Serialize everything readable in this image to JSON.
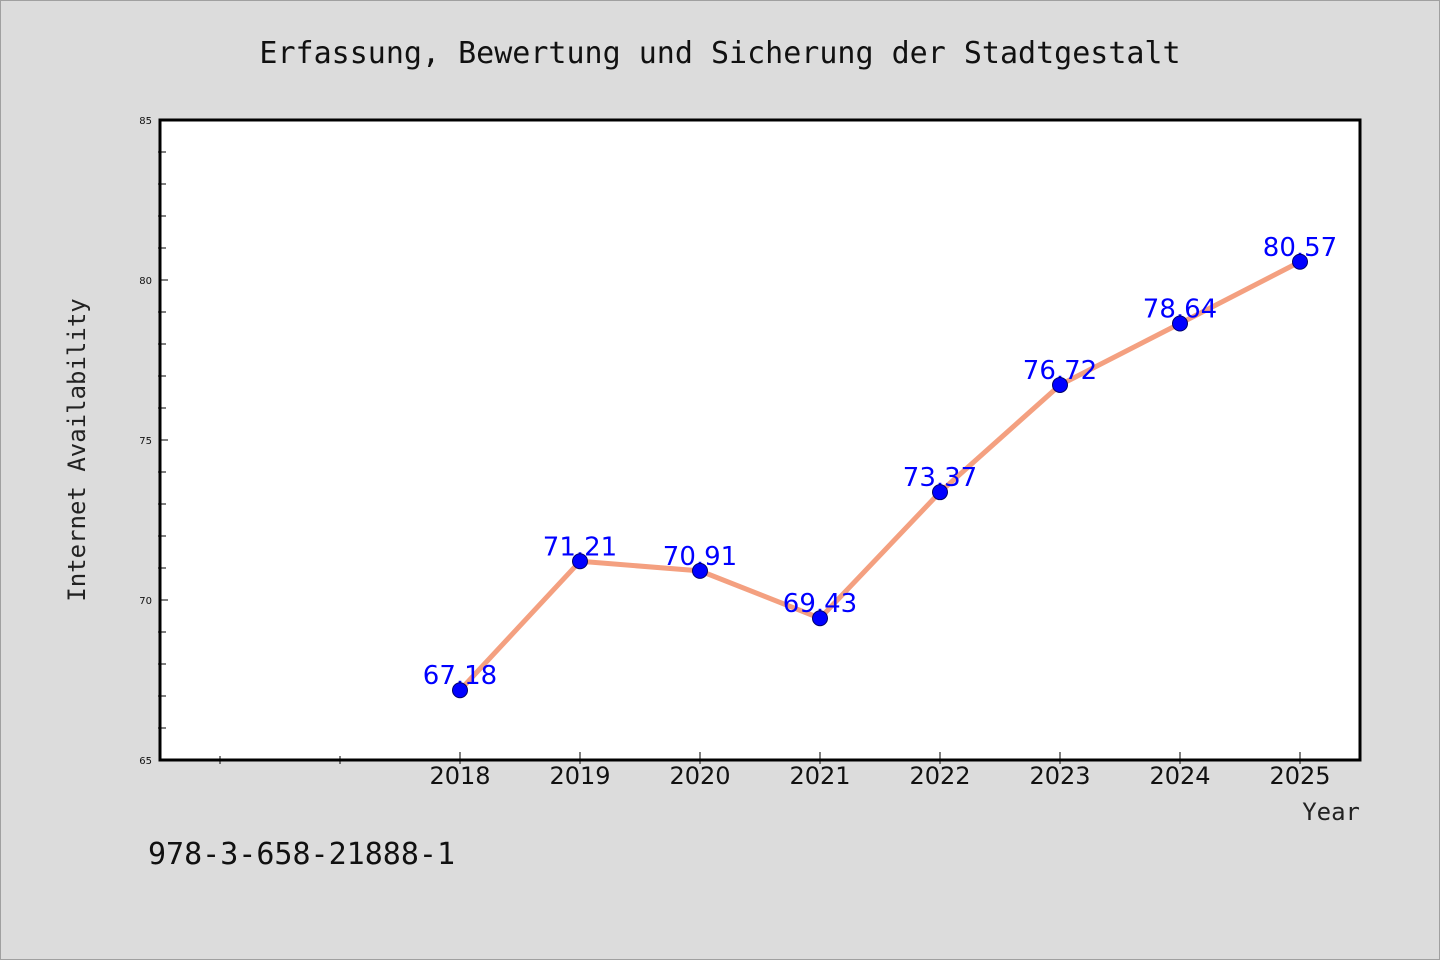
{
  "chart_data": {
    "type": "line",
    "title": "Erfassung, Bewertung und Sicherung der Stadtgestalt",
    "xlabel": "Year",
    "ylabel": "Internet Availability",
    "categories": [
      "2018",
      "2019",
      "2020",
      "2021",
      "2022",
      "2023",
      "2024",
      "2025"
    ],
    "series": [
      {
        "values": [
          67.18,
          71.21,
          70.91,
          69.43,
          73.37,
          76.72,
          78.64,
          80.57
        ],
        "data_labels": [
          "67.18",
          "71.21",
          "70.91",
          "69.43",
          "73.37",
          "76.72",
          "78.64",
          "80.57"
        ],
        "line_color": "#f4a080",
        "marker_color": "#0000ff"
      }
    ],
    "ylim": [
      65,
      85
    ],
    "yticks": [
      "65",
      "70",
      "75",
      "80",
      "85"
    ],
    "x_slots_before_first": 2,
    "grid": false,
    "legend": "none"
  },
  "footer": {
    "isbn": "978-3-658-21888-1"
  }
}
